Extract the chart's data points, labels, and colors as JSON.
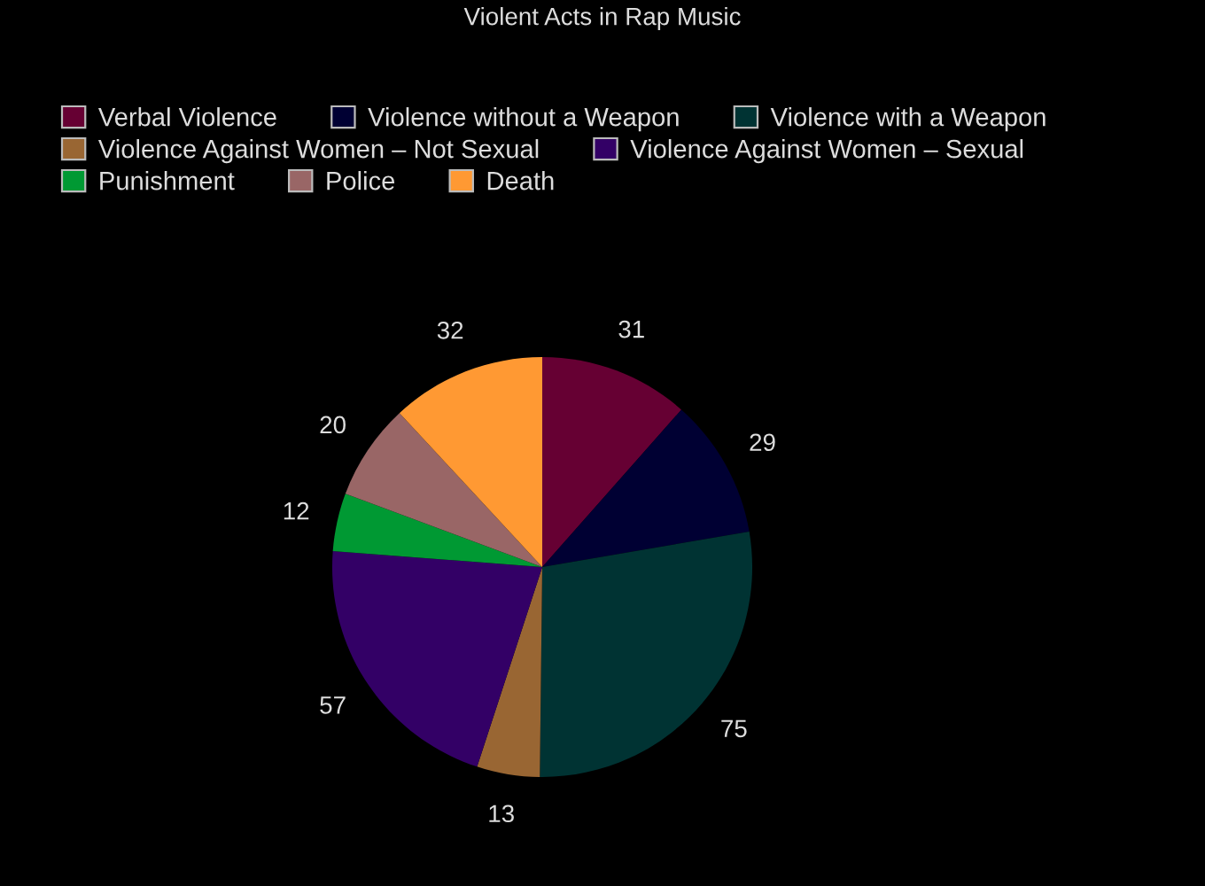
{
  "chart_data": {
    "type": "pie",
    "title": "Violent Acts in Rap Music",
    "categories": [
      "Verbal Violence",
      "Violence without a Weapon",
      "Violence with a Weapon",
      "Violence Against Women – Not Sexual",
      "Violence Against Women – Sexual",
      "Punishment",
      "Police",
      "Death"
    ],
    "values": [
      31,
      29,
      75,
      13,
      57,
      12,
      20,
      32
    ],
    "colors": [
      "#660033",
      "#000033",
      "#003333",
      "#996633",
      "#330066",
      "#009933",
      "#996666",
      "#ff9933"
    ],
    "data_labels": true,
    "legend": "top"
  }
}
